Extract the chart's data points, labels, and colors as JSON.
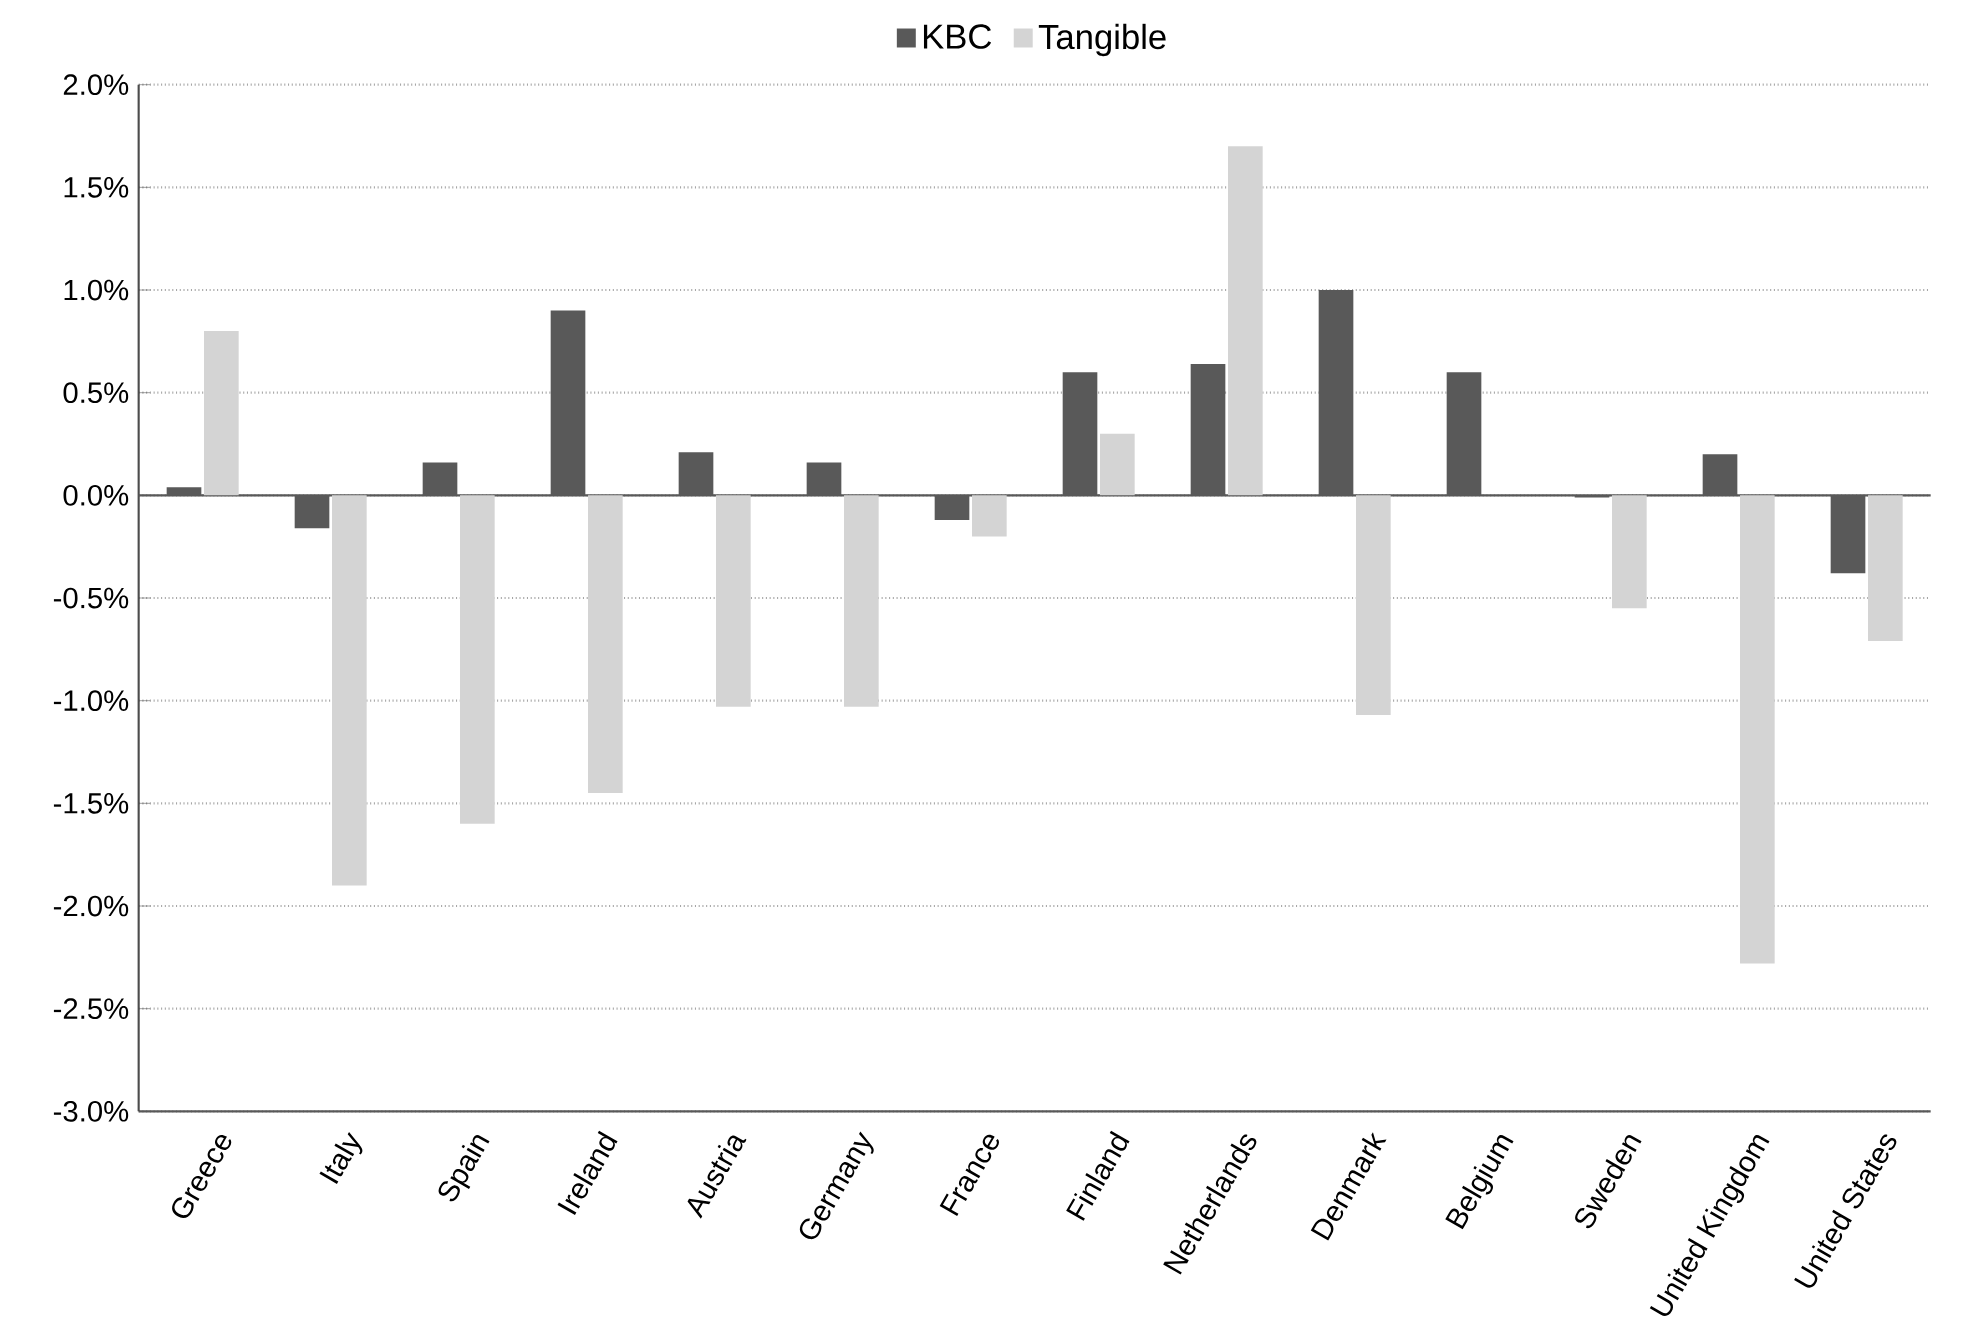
{
  "chart_data": {
    "type": "bar",
    "categories": [
      "Greece",
      "Italy",
      "Spain",
      "Ireland",
      "Austria",
      "Germany",
      "France",
      "Finland",
      "Netherlands",
      "Denmark",
      "Belgium",
      "Sweden",
      "United Kingdom",
      "United States"
    ],
    "series": [
      {
        "name": "KBC",
        "color": "#595959",
        "values": [
          0.04,
          -0.16,
          0.16,
          0.9,
          0.21,
          0.16,
          -0.12,
          0.6,
          0.64,
          1.0,
          0.6,
          -0.01,
          0.2,
          -0.38
        ]
      },
      {
        "name": "Tangible",
        "color": "#d4d4d4",
        "values": [
          0.8,
          -1.9,
          -1.6,
          -1.45,
          -1.03,
          -1.03,
          -0.2,
          0.3,
          1.7,
          -1.07,
          null,
          -0.55,
          -2.28,
          -0.71
        ]
      }
    ],
    "ylim": [
      -3.0,
      2.0
    ],
    "yticks": [
      {
        "value": -3.0,
        "label": "-3.0%"
      },
      {
        "value": -2.5,
        "label": "-2.5%"
      },
      {
        "value": -2.0,
        "label": "-2.0%"
      },
      {
        "value": -1.5,
        "label": "-1.5%"
      },
      {
        "value": -1.0,
        "label": "-1.0%"
      },
      {
        "value": -0.5,
        "label": "-0.5%"
      },
      {
        "value": 0.0,
        "label": "0.0%"
      },
      {
        "value": 0.5,
        "label": "0.5%"
      },
      {
        "value": 1.0,
        "label": "1.0%"
      },
      {
        "value": 1.5,
        "label": "1.5%"
      },
      {
        "value": 2.0,
        "label": "2.0%"
      }
    ],
    "grid": "y",
    "legend": "top"
  }
}
